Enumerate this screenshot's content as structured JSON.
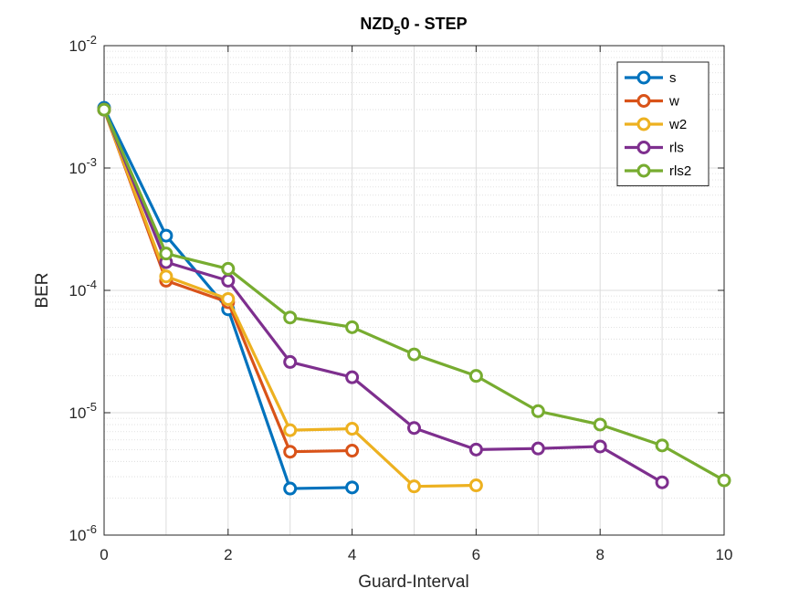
{
  "chart_data": {
    "type": "line",
    "title": {
      "pre": "NZD",
      "sub": "5",
      "post": "0 - STEP"
    },
    "xlabel": "Guard-Interval",
    "ylabel": "BER",
    "xlim": [
      0,
      10
    ],
    "ylim": [
      1e-06,
      0.01
    ],
    "yscale": "log",
    "grid": true,
    "minor_grid": true,
    "legend_position": "top-right",
    "x_ticks": [
      "0",
      "2",
      "4",
      "6",
      "8",
      "10"
    ],
    "y_ticks": [
      {
        "base": "10",
        "exp": "-6"
      },
      {
        "base": "10",
        "exp": "-5"
      },
      {
        "base": "10",
        "exp": "-4"
      },
      {
        "base": "10",
        "exp": "-3"
      },
      {
        "base": "10",
        "exp": "-2"
      }
    ],
    "series": [
      {
        "name": "s",
        "color": "#0072BD",
        "x": [
          0,
          1,
          2,
          3,
          4
        ],
        "y": [
          0.0031,
          0.00028,
          7e-05,
          2.4e-06,
          2.45e-06
        ]
      },
      {
        "name": "w",
        "color": "#D95319",
        "x": [
          0,
          1,
          2,
          3,
          4
        ],
        "y": [
          0.003,
          0.00012,
          8e-05,
          4.8e-06,
          4.9e-06
        ]
      },
      {
        "name": "w2",
        "color": "#EDB120",
        "x": [
          0,
          1,
          2,
          3,
          4,
          5,
          6
        ],
        "y": [
          0.003,
          0.00013,
          8.5e-05,
          7.2e-06,
          7.4e-06,
          2.5e-06,
          2.55e-06
        ]
      },
      {
        "name": "rls",
        "color": "#7E2F8E",
        "x": [
          0,
          1,
          2,
          3,
          4,
          5,
          6,
          7,
          8,
          9
        ],
        "y": [
          0.003,
          0.00017,
          0.00012,
          2.6e-05,
          1.95e-05,
          7.5e-06,
          5e-06,
          5.1e-06,
          5.3e-06,
          2.7e-06
        ]
      },
      {
        "name": "rls2",
        "color": "#77AC30",
        "x": [
          0,
          1,
          2,
          3,
          4,
          5,
          6,
          7,
          8,
          9,
          10
        ],
        "y": [
          0.003,
          0.0002,
          0.00015,
          6e-05,
          5e-05,
          3e-05,
          2e-05,
          1.03e-05,
          8e-06,
          5.4e-06,
          2.8e-06
        ]
      }
    ]
  }
}
